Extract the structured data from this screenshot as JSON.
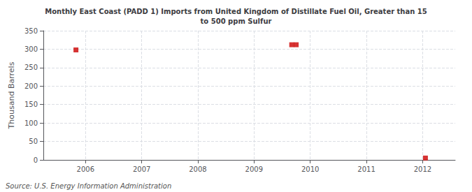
{
  "chart_data": {
    "type": "scatter",
    "title": "Monthly East Coast (PADD 1) Imports from United Kingdom of Distillate Fuel Oil, Greater than 15\nto 500 ppm Sulfur",
    "ylabel": "Thousand Barrels",
    "annotation": "Source: U.S. Energy Information Administration",
    "x": [
      2005.83,
      2009.67,
      2009.75,
      2012.05
    ],
    "values": [
      298,
      312,
      312,
      5
    ],
    "color": "#cc0000",
    "marker": "square",
    "xlim": [
      2005.25,
      2012.58
    ],
    "xticks": [
      2006,
      2007,
      2008,
      2009,
      2010,
      2011,
      2012
    ],
    "ylim": [
      0,
      350
    ],
    "yticks": [
      0,
      50,
      100,
      150,
      200,
      250,
      300,
      350
    ],
    "grid": true
  }
}
